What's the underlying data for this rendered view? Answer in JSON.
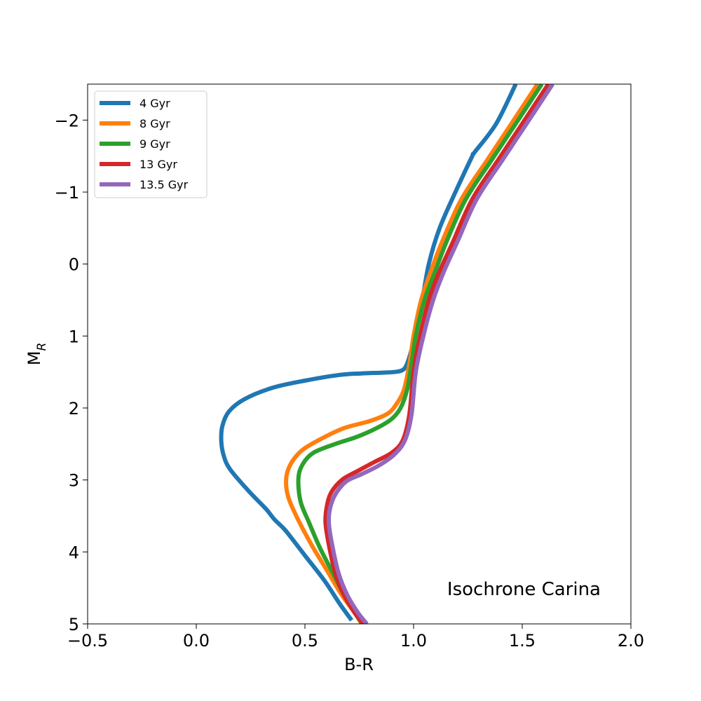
{
  "chart_data": {
    "type": "line",
    "title": "",
    "xlabel": "B-R",
    "ylabel": "M",
    "ylabel_sub": "R",
    "xlim": [
      -0.5,
      2.0
    ],
    "ylim": [
      5,
      -2.5
    ],
    "y_inverted": true,
    "grid": false,
    "legend_position": "top-left",
    "annotation": "Isochrone Carina",
    "x_ticks": [
      -0.5,
      0.0,
      0.5,
      1.0,
      1.5,
      2.0
    ],
    "x_tick_labels": [
      "−0.5",
      "0.0",
      "0.5",
      "1.0",
      "1.5",
      "2.0"
    ],
    "y_ticks": [
      -2,
      -1,
      0,
      1,
      2,
      3,
      4,
      5
    ],
    "y_tick_labels": [
      "−2",
      "−1",
      "0",
      "1",
      "2",
      "3",
      "4",
      "5"
    ],
    "series": [
      {
        "name": "4 Gyr",
        "color": "#1f77b4",
        "x": [
          1.47,
          1.38,
          1.28,
          1.27,
          1.2,
          1.12,
          1.07,
          1.04,
          1.01,
          0.985,
          0.965,
          0.945,
          0.91,
          0.85,
          0.76,
          0.66,
          0.5,
          0.35,
          0.22,
          0.15,
          0.12,
          0.115,
          0.125,
          0.155,
          0.24,
          0.32,
          0.36,
          0.41,
          0.5,
          0.59,
          0.66,
          0.715
        ],
        "y": [
          -2.5,
          -1.95,
          -1.55,
          -1.5,
          -1.05,
          -0.5,
          0.0,
          0.5,
          0.95,
          1.25,
          1.42,
          1.48,
          1.5,
          1.51,
          1.52,
          1.54,
          1.62,
          1.72,
          1.88,
          2.05,
          2.25,
          2.45,
          2.65,
          2.85,
          3.15,
          3.4,
          3.55,
          3.7,
          4.05,
          4.4,
          4.72,
          4.95
        ]
      },
      {
        "name": "8 Gyr",
        "color": "#ff7f0e",
        "x": [
          1.57,
          1.45,
          1.34,
          1.22,
          1.13,
          1.08,
          1.035,
          1.0,
          0.98,
          0.955,
          0.92,
          0.88,
          0.8,
          0.68,
          0.58,
          0.49,
          0.44,
          0.415,
          0.42,
          0.46,
          0.53,
          0.6,
          0.67,
          0.73,
          0.76
        ],
        "y": [
          -2.5,
          -1.95,
          -1.45,
          -0.9,
          -0.3,
          0.1,
          0.5,
          1.0,
          1.4,
          1.75,
          1.95,
          2.08,
          2.18,
          2.28,
          2.42,
          2.58,
          2.75,
          2.95,
          3.2,
          3.5,
          3.9,
          4.25,
          4.6,
          4.85,
          5.0
        ]
      },
      {
        "name": "9 Gyr",
        "color": "#2ca02c",
        "x": [
          1.59,
          1.47,
          1.36,
          1.24,
          1.15,
          1.1,
          1.05,
          1.01,
          0.99,
          0.97,
          0.94,
          0.9,
          0.83,
          0.74,
          0.64,
          0.54,
          0.49,
          0.47,
          0.48,
          0.52,
          0.57,
          0.63,
          0.68,
          0.73,
          0.765
        ],
        "y": [
          -2.5,
          -1.95,
          -1.45,
          -0.9,
          -0.3,
          0.1,
          0.5,
          1.0,
          1.4,
          1.75,
          2.0,
          2.15,
          2.28,
          2.4,
          2.5,
          2.62,
          2.78,
          2.98,
          3.3,
          3.6,
          3.95,
          4.3,
          4.6,
          4.85,
          5.0
        ]
      },
      {
        "name": "13 Gyr",
        "color": "#d62728",
        "x": [
          1.62,
          1.5,
          1.39,
          1.27,
          1.18,
          1.12,
          1.07,
          1.03,
          1.0,
          0.98,
          0.95,
          0.9,
          0.82,
          0.74,
          0.67,
          0.62,
          0.6,
          0.595,
          0.61,
          0.64,
          0.68,
          0.73,
          0.77
        ],
        "y": [
          -2.5,
          -1.95,
          -1.45,
          -0.9,
          -0.3,
          0.1,
          0.5,
          1.0,
          1.5,
          2.1,
          2.45,
          2.62,
          2.75,
          2.88,
          3.0,
          3.18,
          3.38,
          3.6,
          3.9,
          4.3,
          4.6,
          4.85,
          5.0
        ]
      },
      {
        "name": "13.5 Gyr",
        "color": "#9467bd",
        "x": [
          1.64,
          1.52,
          1.41,
          1.29,
          1.2,
          1.14,
          1.09,
          1.045,
          1.01,
          0.99,
          0.96,
          0.91,
          0.84,
          0.76,
          0.69,
          0.64,
          0.615,
          0.61,
          0.625,
          0.655,
          0.695,
          0.745,
          0.785
        ],
        "y": [
          -2.5,
          -1.95,
          -1.45,
          -0.9,
          -0.3,
          0.1,
          0.5,
          1.0,
          1.5,
          2.1,
          2.45,
          2.65,
          2.8,
          2.92,
          3.02,
          3.2,
          3.4,
          3.6,
          3.9,
          4.3,
          4.6,
          4.85,
          5.0
        ]
      }
    ]
  }
}
